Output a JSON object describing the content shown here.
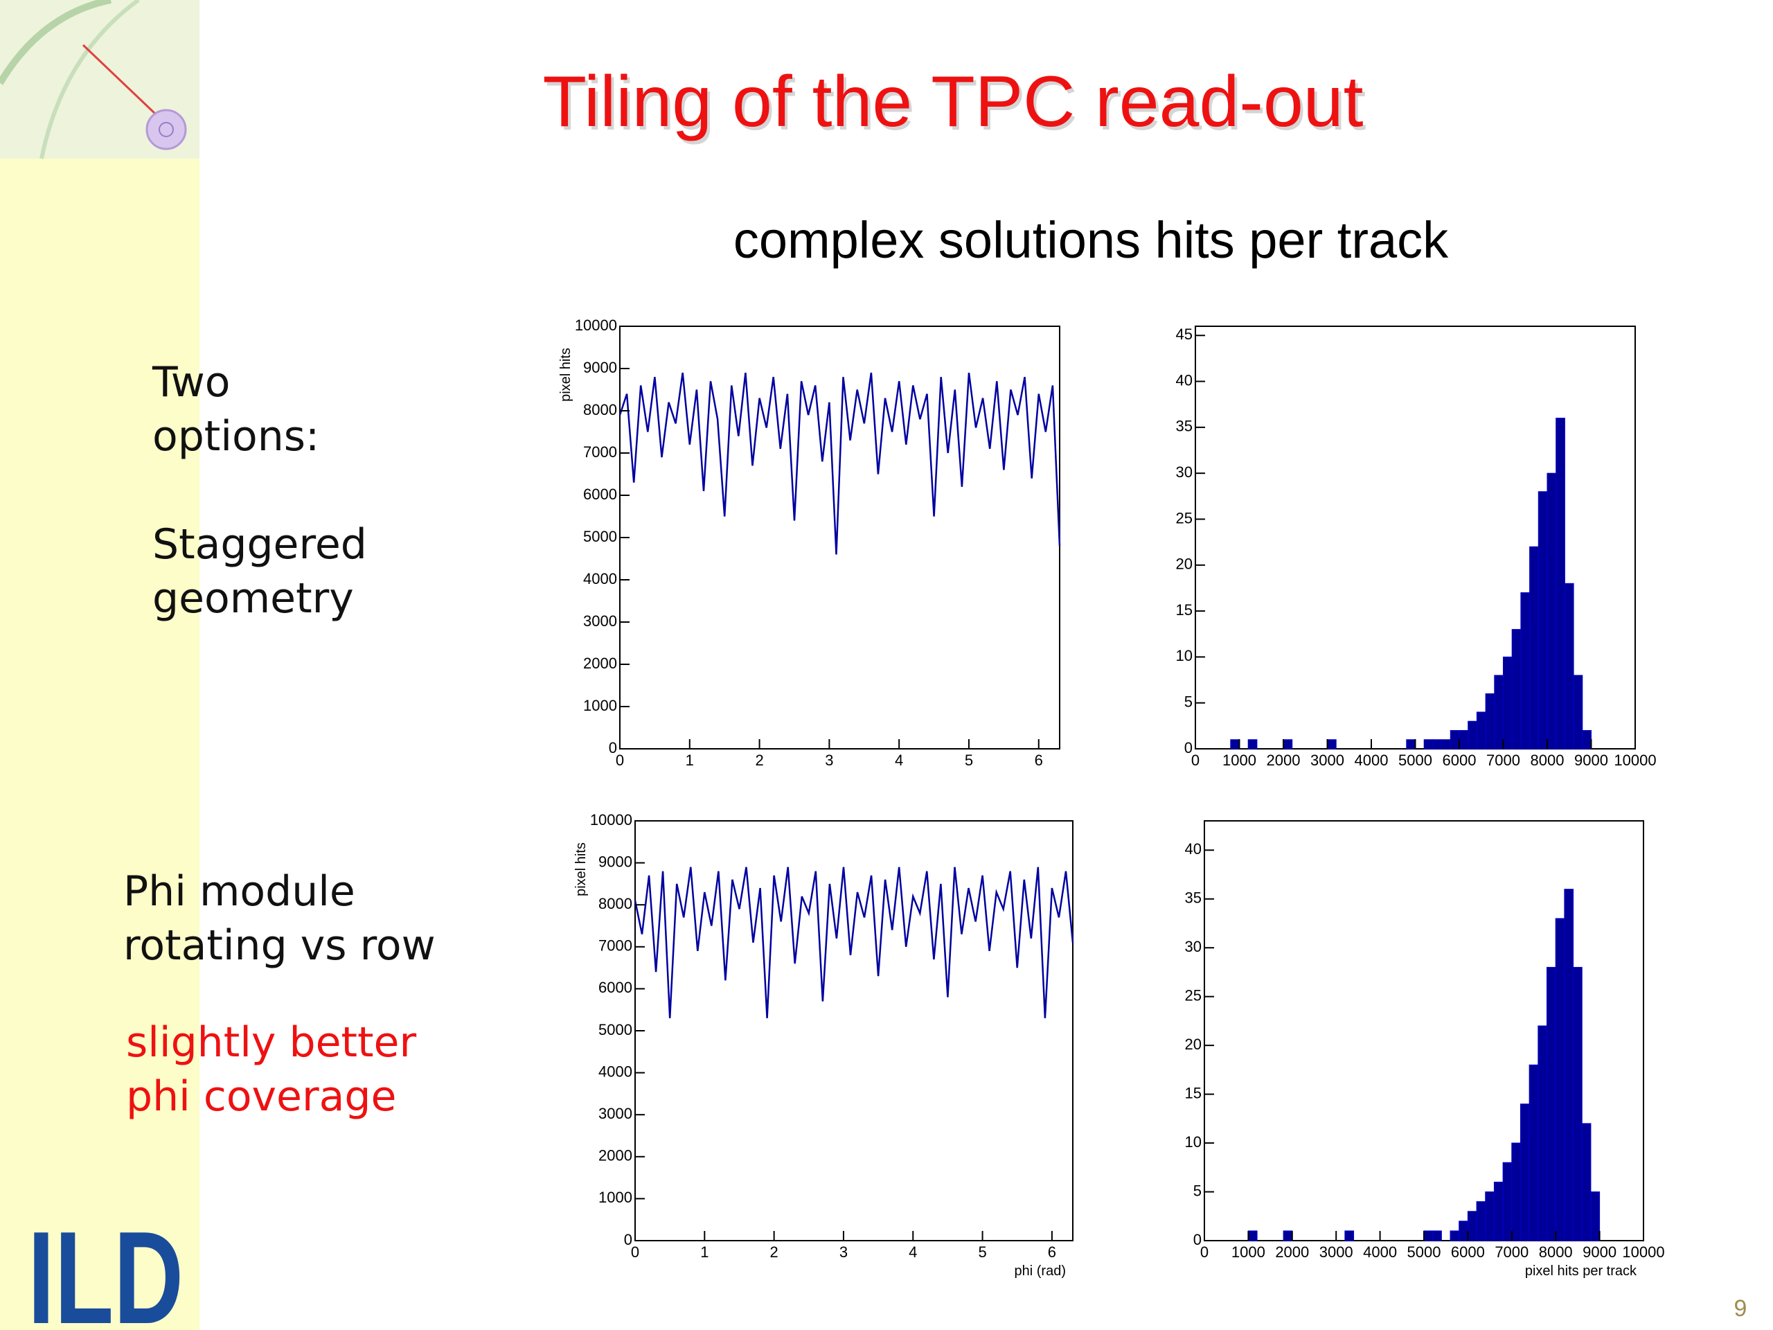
{
  "slide": {
    "title": "Tiling of the TPC read-out",
    "subtitle": "complex solutions hits per track",
    "blocks": [
      {
        "lines": [
          "Two",
          "options:"
        ]
      },
      {
        "lines": [
          "Staggered",
          "geometry"
        ]
      },
      {
        "lines": [
          "Phi module",
          "rotating vs row"
        ]
      },
      {
        "lines": [
          "slightly better",
          "phi coverage"
        ]
      }
    ],
    "logo": "ILD",
    "page_number": "9"
  },
  "chart_data": [
    {
      "type": "line",
      "y_label": "pixel hits",
      "color": "#0000a0",
      "x": [
        0,
        0.1,
        0.2,
        0.3,
        0.4,
        0.5,
        0.6,
        0.7,
        0.8,
        0.9,
        1,
        1.1,
        1.2,
        1.3,
        1.4,
        1.5,
        1.6,
        1.7,
        1.8,
        1.9,
        2,
        2.1,
        2.2,
        2.3,
        2.4,
        2.5,
        2.6,
        2.7,
        2.8,
        2.9,
        3,
        3.1,
        3.2,
        3.3,
        3.4,
        3.5,
        3.6,
        3.7,
        3.8,
        3.9,
        4,
        4.1,
        4.2,
        4.3,
        4.4,
        4.5,
        4.6,
        4.7,
        4.8,
        4.9,
        5,
        5.1,
        5.2,
        5.3,
        5.4,
        5.5,
        5.6,
        5.7,
        5.8,
        5.9,
        6,
        6.1,
        6.2,
        6.3
      ],
      "values": [
        7900,
        8400,
        6300,
        8600,
        7500,
        8800,
        6900,
        8200,
        7700,
        8900,
        7200,
        8500,
        6100,
        8700,
        7800,
        5500,
        8600,
        7400,
        8900,
        6700,
        8300,
        7600,
        8800,
        7100,
        8400,
        5400,
        8700,
        7900,
        8600,
        6800,
        8200,
        4600,
        8800,
        7300,
        8500,
        7700,
        8900,
        6500,
        8300,
        7500,
        8700,
        7200,
        8600,
        7800,
        8400,
        5500,
        8800,
        7000,
        8500,
        6200,
        8900,
        7600,
        8300,
        7100,
        8700,
        6600,
        8500,
        7900,
        8800,
        6400,
        8400,
        7500,
        8600,
        4800
      ],
      "xlim": [
        0,
        6.3
      ],
      "ylim": [
        0,
        10000
      ],
      "xticks": [
        0,
        1,
        2,
        3,
        4,
        5,
        6
      ],
      "yticks": [
        0,
        1000,
        2000,
        3000,
        4000,
        5000,
        6000,
        7000,
        8000,
        9000,
        10000
      ]
    },
    {
      "type": "histogram",
      "color": "#000099",
      "bins": [
        0,
        200,
        400,
        600,
        800,
        1000,
        1200,
        1400,
        1600,
        1800,
        2000,
        2200,
        2400,
        2600,
        2800,
        3000,
        3200,
        3400,
        3600,
        3800,
        4000,
        4200,
        4400,
        4600,
        4800,
        5000,
        5200,
        5400,
        5600,
        5800,
        6000,
        6200,
        6400,
        6600,
        6800,
        7000,
        7200,
        7400,
        7600,
        7800,
        8000,
        8200,
        8400,
        8600,
        8800,
        9000,
        9200,
        9400,
        9600,
        9800,
        10000
      ],
      "values": [
        0,
        0,
        0,
        0,
        1,
        0,
        1,
        0,
        0,
        0,
        1,
        0,
        0,
        0,
        0,
        1,
        0,
        0,
        0,
        0,
        0,
        0,
        0,
        0,
        1,
        0,
        1,
        1,
        1,
        2,
        2,
        3,
        4,
        6,
        8,
        10,
        13,
        17,
        22,
        28,
        30,
        36,
        18,
        8,
        2,
        0,
        0,
        0,
        0,
        0
      ],
      "xlim": [
        0,
        10000
      ],
      "ylim": [
        0,
        46
      ],
      "xticks": [
        0,
        1000,
        2000,
        3000,
        4000,
        5000,
        6000,
        7000,
        8000,
        9000,
        10000
      ],
      "yticks": [
        0,
        5,
        10,
        15,
        20,
        25,
        30,
        35,
        40,
        45
      ]
    },
    {
      "type": "line",
      "y_label": "pixel hits",
      "x_label": "phi (rad)",
      "color": "#0000a0",
      "x": [
        0,
        0.1,
        0.2,
        0.3,
        0.4,
        0.5,
        0.6,
        0.7,
        0.8,
        0.9,
        1,
        1.1,
        1.2,
        1.3,
        1.4,
        1.5,
        1.6,
        1.7,
        1.8,
        1.9,
        2,
        2.1,
        2.2,
        2.3,
        2.4,
        2.5,
        2.6,
        2.7,
        2.8,
        2.9,
        3,
        3.1,
        3.2,
        3.3,
        3.4,
        3.5,
        3.6,
        3.7,
        3.8,
        3.9,
        4,
        4.1,
        4.2,
        4.3,
        4.4,
        4.5,
        4.6,
        4.7,
        4.8,
        4.9,
        5,
        5.1,
        5.2,
        5.3,
        5.4,
        5.5,
        5.6,
        5.7,
        5.8,
        5.9,
        6,
        6.1,
        6.2,
        6.3
      ],
      "values": [
        8100,
        7300,
        8700,
        6400,
        8800,
        5300,
        8500,
        7700,
        8900,
        6900,
        8300,
        7500,
        8800,
        6200,
        8600,
        7900,
        8900,
        7100,
        8400,
        5300,
        8700,
        7600,
        8900,
        6600,
        8200,
        7800,
        8800,
        5700,
        8500,
        7200,
        8900,
        6800,
        8300,
        7700,
        8700,
        6300,
        8600,
        7400,
        8900,
        7000,
        8200,
        7800,
        8800,
        6700,
        8500,
        5800,
        8900,
        7300,
        8400,
        7600,
        8700,
        6900,
        8300,
        7900,
        8800,
        6500,
        8600,
        7200,
        8900,
        5300,
        8400,
        7700,
        8800,
        7100
      ],
      "xlim": [
        0,
        6.3
      ],
      "ylim": [
        0,
        10000
      ],
      "xticks": [
        0,
        1,
        2,
        3,
        4,
        5,
        6
      ],
      "yticks": [
        0,
        1000,
        2000,
        3000,
        4000,
        5000,
        6000,
        7000,
        8000,
        9000,
        10000
      ]
    },
    {
      "type": "histogram",
      "x_label": "pixel hits per track",
      "color": "#000099",
      "bins": [
        0,
        200,
        400,
        600,
        800,
        1000,
        1200,
        1400,
        1600,
        1800,
        2000,
        2200,
        2400,
        2600,
        2800,
        3000,
        3200,
        3400,
        3600,
        3800,
        4000,
        4200,
        4400,
        4600,
        4800,
        5000,
        5200,
        5400,
        5600,
        5800,
        6000,
        6200,
        6400,
        6600,
        6800,
        7000,
        7200,
        7400,
        7600,
        7800,
        8000,
        8200,
        8400,
        8600,
        8800,
        9000,
        9200,
        9400,
        9600,
        9800,
        10000
      ],
      "values": [
        0,
        0,
        0,
        0,
        0,
        1,
        0,
        0,
        0,
        1,
        0,
        0,
        0,
        0,
        0,
        0,
        1,
        0,
        0,
        0,
        0,
        0,
        0,
        0,
        0,
        1,
        1,
        0,
        1,
        2,
        3,
        4,
        5,
        6,
        8,
        10,
        14,
        18,
        22,
        28,
        33,
        36,
        28,
        12,
        5,
        0,
        0,
        0,
        0,
        0
      ],
      "xlim": [
        0,
        10000
      ],
      "ylim": [
        0,
        43
      ],
      "xticks": [
        0,
        1000,
        2000,
        3000,
        4000,
        5000,
        6000,
        7000,
        8000,
        9000,
        10000
      ],
      "yticks": [
        0,
        5,
        10,
        15,
        20,
        25,
        30,
        35,
        40
      ]
    }
  ]
}
